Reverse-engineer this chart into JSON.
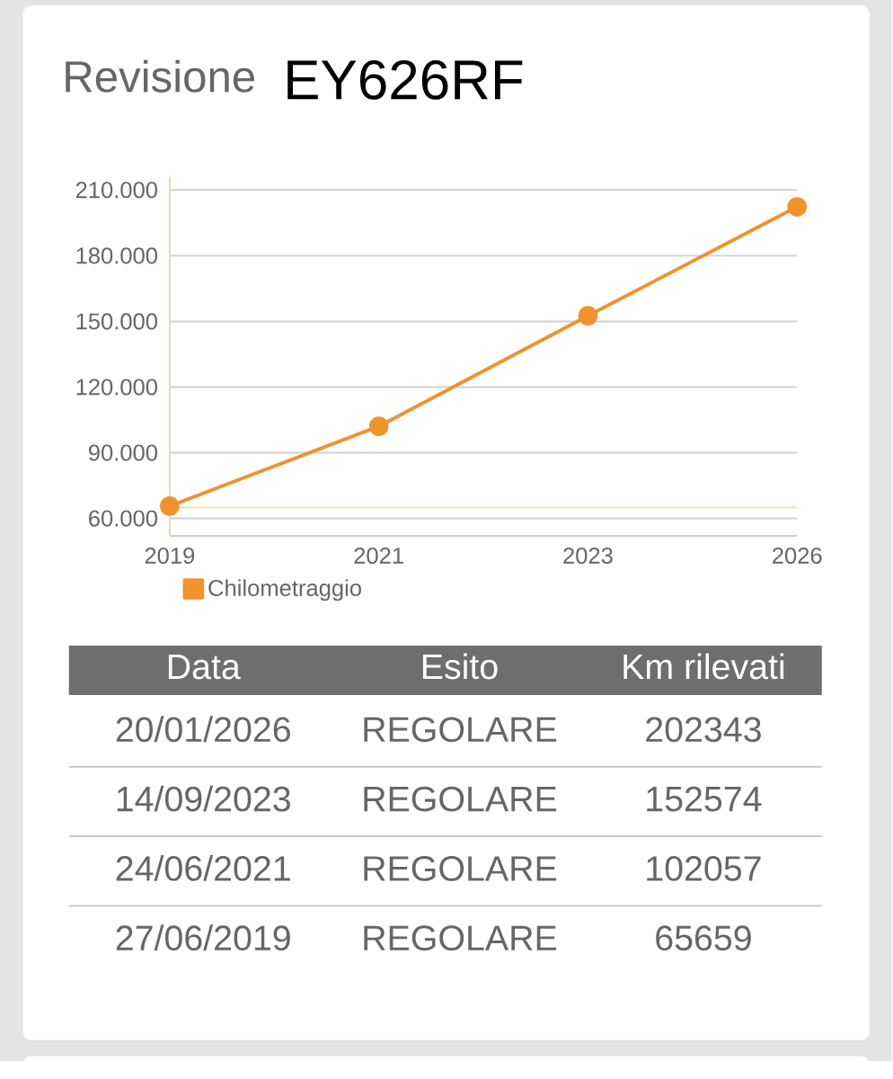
{
  "chart_data": {
    "type": "line",
    "title": "Revisione",
    "subtitle": "EY626RF",
    "categories": [
      "2019",
      "2021",
      "2023",
      "2026"
    ],
    "series": [
      {
        "name": "Chilometraggio",
        "color": "#f0922e",
        "values": [
          65659,
          102057,
          152574,
          202343
        ]
      }
    ],
    "ylim": [
      52000,
      216000
    ],
    "yticks": [
      {
        "value": 60000,
        "label": "60.000"
      },
      {
        "value": 90000,
        "label": "90.000"
      },
      {
        "value": 120000,
        "label": "120.000"
      },
      {
        "value": 150000,
        "label": "150.000"
      },
      {
        "value": 180000,
        "label": "180.000"
      },
      {
        "value": 210000,
        "label": "210.000"
      }
    ],
    "grid": "y",
    "legend": "bottom left",
    "marker": "circle",
    "line_style": "solid",
    "ref_lines": [
      {
        "axis": "y",
        "value": 65000,
        "color": "#ece3bb"
      }
    ],
    "annotations": [
      "Data",
      "Esito",
      "Km rilevati",
      "20/01/2026",
      "REGOLARE",
      "202343",
      "14/09/2023",
      "REGOLARE",
      "152574",
      "24/06/2021",
      "REGOLARE",
      "102057",
      "27/06/2019",
      "REGOLARE",
      "65659"
    ]
  }
}
